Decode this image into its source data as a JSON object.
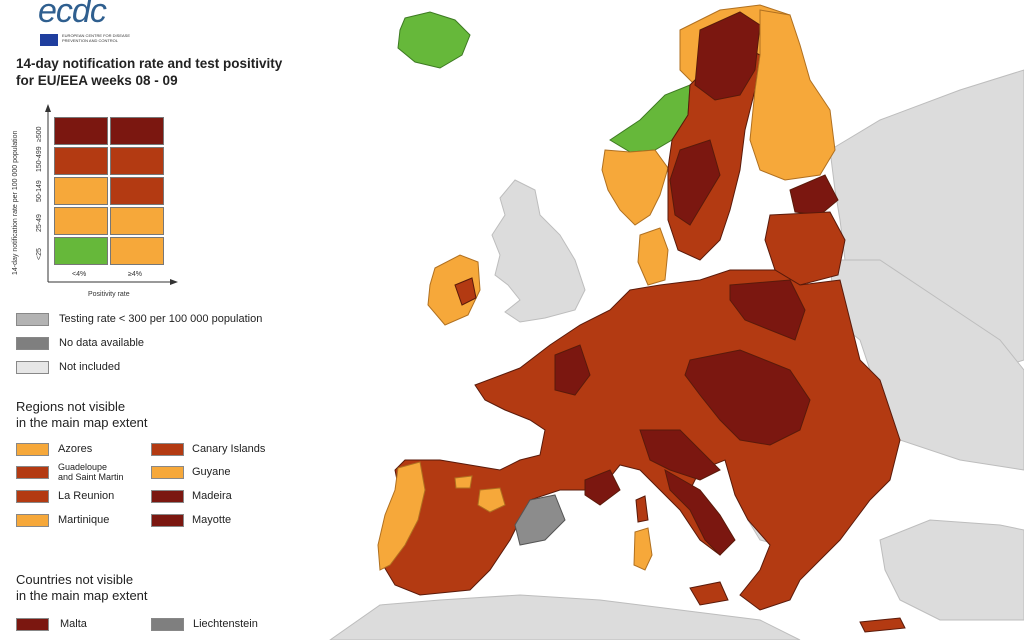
{
  "header": {
    "logo_text": "ecdc",
    "logo_subtitle": "EUROPEAN CENTRE FOR DISEASE PREVENTION AND CONTROL",
    "title_line1": "14-day notification rate and test positivity",
    "title_line2": "for EU/EEA weeks 08 - 09"
  },
  "matrix": {
    "y_axis_label": "14-day notification rate per 100 000 population",
    "x_axis_label": "Positivity rate",
    "x_ticks": [
      "<4%",
      "≥4%"
    ],
    "y_ticks": [
      "≥500",
      "150-499",
      "50-149",
      "25-49",
      "<25"
    ],
    "rows": [
      [
        "#7b1710",
        "#7b1710"
      ],
      [
        "#b33a12",
        "#b33a12"
      ],
      [
        "#f6a83a",
        "#b33a12"
      ],
      [
        "#f6a83a",
        "#f6a83a"
      ],
      [
        "#66b83a",
        "#f6a83a"
      ]
    ]
  },
  "legend": {
    "grey_items": [
      {
        "label": "Testing rate < 300 per 100 000 population",
        "color": "#b3b3b3"
      },
      {
        "label": "No data available",
        "color": "#7f7f7f"
      },
      {
        "label": "Not included",
        "color": "#e6e6e6"
      }
    ],
    "regions_heading_line1": "Regions not visible",
    "regions_heading_line2": "in the main map extent",
    "regions": [
      {
        "label": "Azores",
        "color": "#f6a83a"
      },
      {
        "label": "Canary Islands",
        "color": "#b33a12"
      },
      {
        "label_line1": "Guadeloupe",
        "label_line2": "and Saint Martin",
        "color": "#b33a12"
      },
      {
        "label": "Guyane",
        "color": "#f6a83a"
      },
      {
        "label": "La Reunion",
        "color": "#b33a12"
      },
      {
        "label": "Madeira",
        "color": "#7b1710"
      },
      {
        "label": "Martinique",
        "color": "#f6a83a"
      },
      {
        "label": "Mayotte",
        "color": "#7b1710"
      }
    ],
    "countries_heading_line1": "Countries not visible",
    "countries_heading_line2": "in the main map extent",
    "countries": [
      {
        "label": "Malta",
        "color": "#7b1710"
      },
      {
        "label": "Liechtenstein",
        "color": "#7f7f7f"
      }
    ]
  },
  "map_colors": {
    "sea": "#ffffff",
    "non_included_land": "#dcdcdc",
    "dark_red": "#7b1710",
    "red": "#b33a12",
    "orange": "#f6a83a",
    "green": "#66b83a",
    "no_data": "#8c8c8c",
    "border": "#5a1a0a"
  }
}
